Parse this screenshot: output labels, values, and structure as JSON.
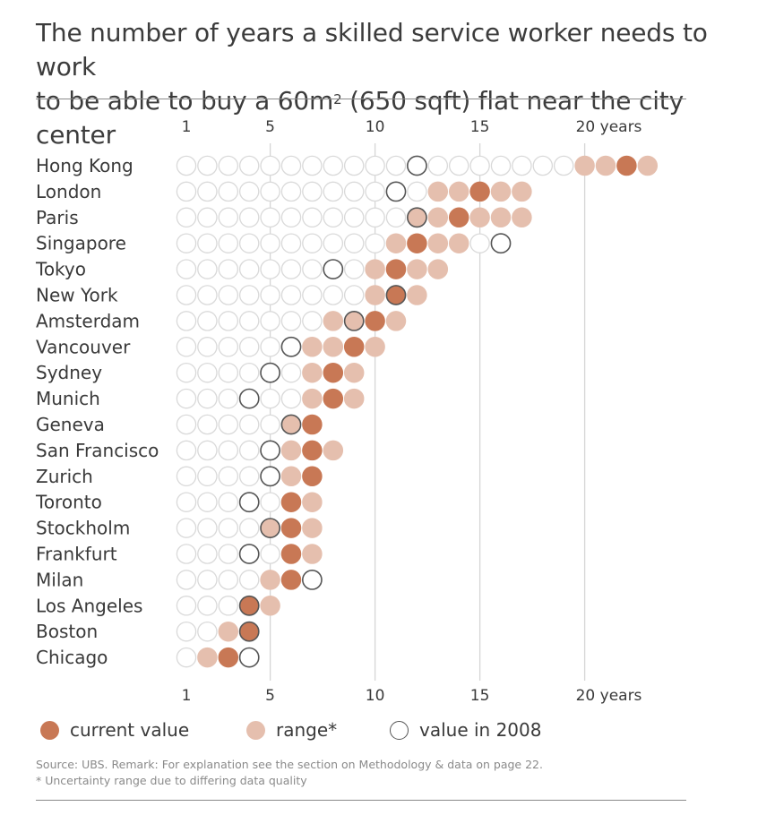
{
  "title": {
    "line1": "The number of years a skilled service worker needs to work",
    "line2_pre": "to be able to buy a 60m",
    "line2_sup": "2",
    "line2_post": " (650 sqft) flat near the city center"
  },
  "colors": {
    "current": "#c87855",
    "range": "#e5bfae",
    "empty_stroke": "#d9d9d9",
    "value_2008_stroke": "#555555",
    "gridline": "#d6d6d6",
    "text": "#3a3a3a"
  },
  "legend": {
    "current_label": "current value",
    "range_label": "range*",
    "y2008_label": "value in 2008"
  },
  "notes": {
    "source": "Source: UBS. Remark: For explanation see the section on Methodology & data on page 22.",
    "remark": "* Uncertainty range due to differing data quality"
  },
  "chart_data": {
    "type": "dot-plot",
    "x_ticks": [
      {
        "value": 1,
        "label": "1"
      },
      {
        "value": 5,
        "label": "5"
      },
      {
        "value": 10,
        "label": "10"
      },
      {
        "value": 15,
        "label": "15"
      },
      {
        "value": 20,
        "label": "20 years"
      }
    ],
    "xlim": [
      1,
      23
    ],
    "rows": [
      {
        "city": "Hong Kong",
        "current": 22,
        "range": [
          20,
          23
        ],
        "y2008": 12,
        "max": 23
      },
      {
        "city": "London",
        "current": 15,
        "range": [
          13,
          17
        ],
        "y2008": 11,
        "max": 17
      },
      {
        "city": "Paris",
        "current": 14,
        "range": [
          12,
          17
        ],
        "y2008": 12,
        "max": 17
      },
      {
        "city": "Singapore",
        "current": 12,
        "range": [
          11,
          14
        ],
        "y2008": 16,
        "max": 16
      },
      {
        "city": "Tokyo",
        "current": 11,
        "range": [
          10,
          13
        ],
        "y2008": 8,
        "max": 13
      },
      {
        "city": "New York",
        "current": 11,
        "range": [
          10,
          12
        ],
        "y2008": 11,
        "max": 12
      },
      {
        "city": "Amsterdam",
        "current": 10,
        "range": [
          8,
          11
        ],
        "y2008": 9,
        "max": 11
      },
      {
        "city": "Vancouver",
        "current": 9,
        "range": [
          7,
          10
        ],
        "y2008": 6,
        "max": 10
      },
      {
        "city": "Sydney",
        "current": 8,
        "range": [
          7,
          9
        ],
        "y2008": 5,
        "max": 9
      },
      {
        "city": "Munich",
        "current": 8,
        "range": [
          7,
          9
        ],
        "y2008": 4,
        "max": 9
      },
      {
        "city": "Geneva",
        "current": 7,
        "range": [
          6,
          7
        ],
        "y2008": 6,
        "max": 7
      },
      {
        "city": "San Francisco",
        "current": 7,
        "range": [
          6,
          8
        ],
        "y2008": 5,
        "max": 8
      },
      {
        "city": "Zurich",
        "current": 7,
        "range": [
          6,
          7
        ],
        "y2008": 5,
        "max": 7
      },
      {
        "city": "Toronto",
        "current": 6,
        "range": [
          6,
          7
        ],
        "y2008": 4,
        "max": 7
      },
      {
        "city": "Stockholm",
        "current": 6,
        "range": [
          5,
          7
        ],
        "y2008": 5,
        "max": 7
      },
      {
        "city": "Frankfurt",
        "current": 6,
        "range": [
          6,
          7
        ],
        "y2008": 4,
        "max": 7
      },
      {
        "city": "Milan",
        "current": 6,
        "range": [
          5,
          6
        ],
        "y2008": 7,
        "max": 7
      },
      {
        "city": "Los Angeles",
        "current": 4,
        "range": [
          4,
          5
        ],
        "y2008": 4,
        "max": 5
      },
      {
        "city": "Boston",
        "current": 4,
        "range": [
          3,
          4
        ],
        "y2008": 4,
        "max": 4
      },
      {
        "city": "Chicago",
        "current": 3,
        "range": [
          2,
          3
        ],
        "y2008": 4,
        "max": 4
      }
    ]
  }
}
